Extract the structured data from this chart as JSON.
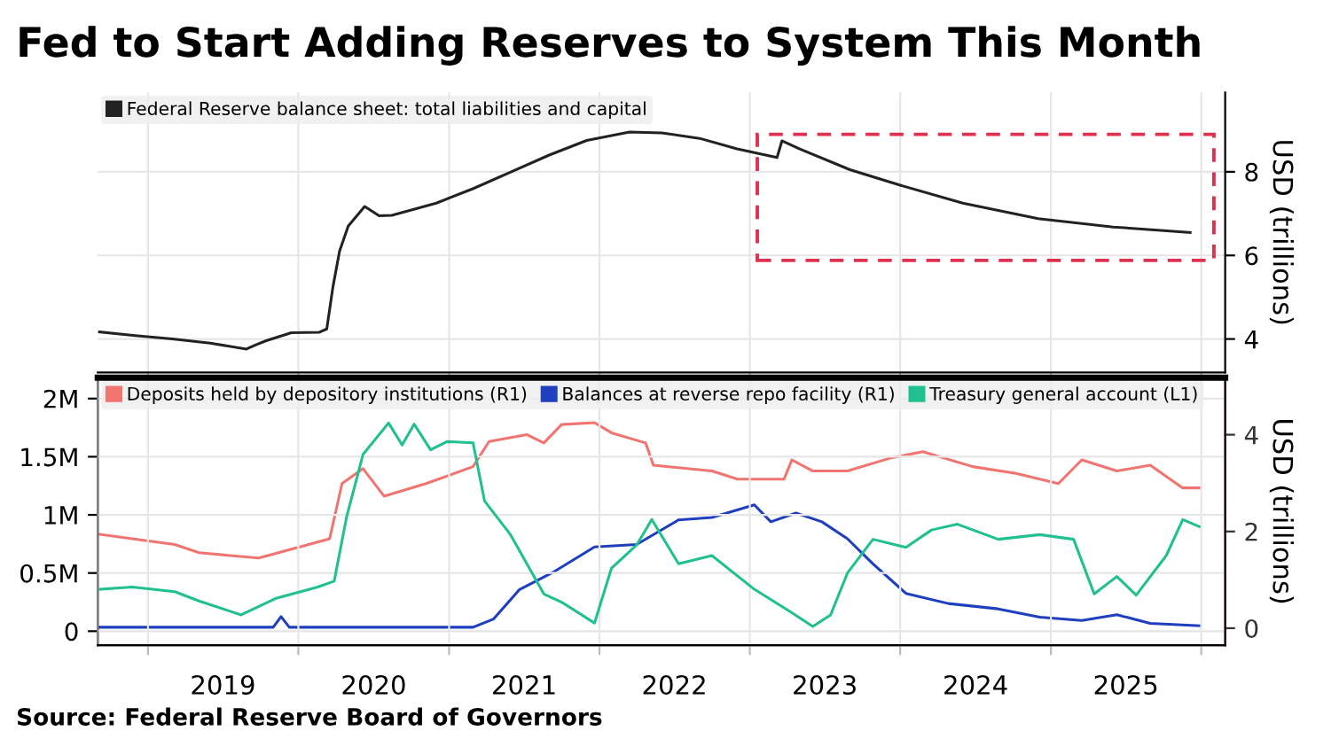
{
  "chart_data": [
    {
      "type": "line",
      "title": "Fed to Start Adding Reserves to System This Month",
      "ylabel": "USD (trillions)",
      "legend": "top left",
      "grid": true,
      "tick_labels": "y",
      "xlim": [
        "2018-09-01",
        "2026-02-28"
      ],
      "ylim": [
        3.2,
        9.9
      ],
      "yticks": [
        4,
        6,
        8
      ],
      "xticks": [
        {
          "value": "2019-01-01",
          "label": null
        },
        {
          "value": "2020-01-01",
          "label": null
        },
        {
          "value": "2021-01-01",
          "label": null
        },
        {
          "value": "2022-01-01",
          "label": null
        },
        {
          "value": "2023-01-01",
          "label": null
        },
        {
          "value": "2024-01-01",
          "label": null
        },
        {
          "value": "2025-01-01",
          "label": null
        },
        {
          "value": "2026-01-01",
          "label": null
        }
      ],
      "series": [
        {
          "name": "Federal Reserve balance sheet: total liabilities and capital",
          "color": "#222222",
          "x": [
            "2018-09-05",
            "2018-12-01",
            "2019-03-01",
            "2019-06-01",
            "2019-08-28",
            "2019-09-20",
            "2019-10-15",
            "2019-12-15",
            "2020-02-20",
            "2020-03-10",
            "2020-03-25",
            "2020-04-10",
            "2020-05-01",
            "2020-06-10",
            "2020-07-15",
            "2020-08-15",
            "2020-12-01",
            "2021-03-01",
            "2021-06-01",
            "2021-09-01",
            "2021-12-01",
            "2022-03-15",
            "2022-06-01",
            "2022-09-01",
            "2022-12-01",
            "2023-03-08",
            "2023-03-20",
            "2023-05-01",
            "2023-09-01",
            "2024-01-01",
            "2024-06-01",
            "2024-12-01",
            "2025-06-01",
            "2025-12-05"
          ],
          "values": [
            4.17,
            4.08,
            4.0,
            3.9,
            3.76,
            3.86,
            3.96,
            4.15,
            4.16,
            4.24,
            5.25,
            6.1,
            6.7,
            7.17,
            6.95,
            6.96,
            7.25,
            7.6,
            8.0,
            8.4,
            8.75,
            8.95,
            8.93,
            8.8,
            8.55,
            8.34,
            8.74,
            8.55,
            8.05,
            7.68,
            7.25,
            6.88,
            6.68,
            6.55
          ]
        }
      ]
    },
    {
      "type": "line",
      "y2label": "USD (trillions)",
      "legend": "top left",
      "grid": true,
      "annotations": [
        "Source: Federal Reserve Board of Governors"
      ],
      "xlim": [
        "2018-09-01",
        "2026-02-28"
      ],
      "xticks": [
        {
          "value": "2019-01-01",
          "label": null
        },
        {
          "value": "2019-07-02",
          "label": "2019"
        },
        {
          "value": "2020-01-01",
          "label": null
        },
        {
          "value": "2020-07-02",
          "label": "2020"
        },
        {
          "value": "2021-01-01",
          "label": null
        },
        {
          "value": "2021-07-02",
          "label": "2021"
        },
        {
          "value": "2022-01-01",
          "label": null
        },
        {
          "value": "2022-07-02",
          "label": "2022"
        },
        {
          "value": "2023-01-01",
          "label": null
        },
        {
          "value": "2023-07-02",
          "label": "2023"
        },
        {
          "value": "2024-01-01",
          "label": null
        },
        {
          "value": "2024-07-02",
          "label": "2024"
        },
        {
          "value": "2025-01-01",
          "label": null
        },
        {
          "value": "2025-07-02",
          "label": "2025"
        },
        {
          "value": "2026-01-01",
          "label": null
        }
      ],
      "ylim": [
        -0.12,
        2.18
      ],
      "yticks": [
        0,
        {
          "value": 0.5,
          "label": "0.5M"
        },
        {
          "value": 1,
          "label": "1M"
        },
        {
          "value": 1.5,
          "label": "1.5M"
        },
        {
          "value": 2,
          "label": "2M"
        }
      ],
      "y2lim": [
        -0.35,
        5.18
      ],
      "y2ticks": [
        0,
        2,
        4
      ],
      "series": [
        {
          "name": "Deposits held by depository institutions (R1)",
          "color": "#f07470",
          "axis": "y2",
          "x": [
            "2018-09-05",
            "2019-03-07",
            "2019-05-05",
            "2019-09-27",
            "2020-01-26",
            "2020-03-17",
            "2020-04-16",
            "2020-06-06",
            "2020-07-27",
            "2020-11-06",
            "2021-02-28",
            "2021-04-08",
            "2021-07-09",
            "2021-08-19",
            "2021-10-01",
            "2021-12-20",
            "2022-01-30",
            "2022-04-23",
            "2022-05-12",
            "2022-10-01",
            "2022-12-02",
            "2023-03-25",
            "2023-04-13",
            "2023-06-03",
            "2023-08-26",
            "2023-12-05",
            "2024-02-25",
            "2024-06-25",
            "2024-10-08",
            "2025-01-19",
            "2025-03-17",
            "2025-06-10",
            "2025-08-30",
            "2025-11-17",
            "2025-12-27"
          ],
          "values": [
            1.94,
            1.73,
            1.56,
            1.45,
            1.73,
            1.85,
            2.99,
            3.3,
            2.73,
            2.99,
            3.34,
            3.86,
            4.0,
            3.83,
            4.21,
            4.25,
            4.04,
            3.83,
            3.37,
            3.25,
            3.08,
            3.08,
            3.48,
            3.25,
            3.25,
            3.51,
            3.65,
            3.34,
            3.2,
            2.99,
            3.48,
            3.25,
            3.37,
            2.9,
            2.9
          ]
        },
        {
          "name": "Balances at reverse repo facility (R1)",
          "color": "#1f3fbf",
          "axis": "y2",
          "x": [
            "2018-09-05",
            "2019-11-01",
            "2019-11-20",
            "2019-12-10",
            "2021-02-28",
            "2021-04-19",
            "2021-06-21",
            "2021-09-09",
            "2021-12-20",
            "2022-04-01",
            "2022-07-12",
            "2022-10-01",
            "2023-01-12",
            "2023-02-21",
            "2023-04-23",
            "2023-06-25",
            "2023-08-26",
            "2023-10-27",
            "2024-01-15",
            "2024-04-27",
            "2024-08-26",
            "2024-12-05",
            "2025-03-17",
            "2025-06-10",
            "2025-08-30",
            "2025-12-27"
          ],
          "values": [
            0.02,
            0.02,
            0.24,
            0.02,
            0.02,
            0.19,
            0.8,
            1.15,
            1.68,
            1.73,
            2.24,
            2.29,
            2.55,
            2.2,
            2.38,
            2.2,
            1.85,
            1.33,
            0.72,
            0.51,
            0.4,
            0.23,
            0.16,
            0.28,
            0.1,
            0.05
          ]
        },
        {
          "name": "Treasury general account (L1)",
          "color": "#20c090",
          "axis": "y",
          "x": [
            "2018-09-05",
            "2018-11-24",
            "2019-03-07",
            "2019-05-05",
            "2019-08-15",
            "2019-11-06",
            "2020-02-17",
            "2020-03-28",
            "2020-04-27",
            "2020-06-06",
            "2020-08-07",
            "2020-09-09",
            "2020-10-08",
            "2020-11-17",
            "2020-12-27",
            "2021-02-28",
            "2021-03-28",
            "2021-05-30",
            "2021-08-19",
            "2021-10-01",
            "2021-12-20",
            "2022-01-30",
            "2022-04-01",
            "2022-05-08",
            "2022-07-12",
            "2022-10-01",
            "2023-01-12",
            "2023-04-08",
            "2023-06-03",
            "2023-07-16",
            "2023-08-26",
            "2023-10-27",
            "2024-01-15",
            "2024-03-17",
            "2024-05-19",
            "2024-08-26",
            "2024-12-05",
            "2025-02-25",
            "2025-04-16",
            "2025-06-10",
            "2025-07-27",
            "2025-10-08",
            "2025-11-17",
            "2025-12-27"
          ],
          "values": [
            0.36,
            0.38,
            0.34,
            0.26,
            0.14,
            0.28,
            0.38,
            0.43,
            0.98,
            1.52,
            1.79,
            1.6,
            1.78,
            1.56,
            1.63,
            1.62,
            1.12,
            0.83,
            0.32,
            0.25,
            0.07,
            0.54,
            0.74,
            0.96,
            0.58,
            0.65,
            0.36,
            0.17,
            0.04,
            0.14,
            0.5,
            0.79,
            0.72,
            0.87,
            0.92,
            0.79,
            0.83,
            0.79,
            0.32,
            0.47,
            0.31,
            0.65,
            0.96,
            0.9
          ]
        }
      ]
    }
  ]
}
